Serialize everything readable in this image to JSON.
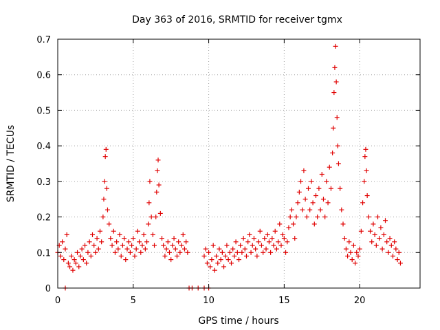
{
  "chart_data": {
    "type": "scatter",
    "title": "Day 363 of 2016, SRMTID for receiver tgmx",
    "xlabel": "GPS time / hours",
    "ylabel": "SRMTID / TECUs",
    "xlim": [
      0,
      24
    ],
    "ylim": [
      0,
      0.7
    ],
    "xticks": [
      0,
      5,
      10,
      15,
      20
    ],
    "yticks": [
      0,
      0.1,
      0.2,
      0.3,
      0.4,
      0.5,
      0.6,
      0.7
    ],
    "xtick_labels": [
      "0",
      "5",
      "10",
      "15",
      "20"
    ],
    "ytick_labels": [
      "0",
      "0.1",
      "0.2",
      "0.3",
      "0.4",
      "0.5",
      "0.6",
      "0.7"
    ],
    "grid": true,
    "marker": "plus",
    "color": "#e00000",
    "series": [
      {
        "name": "SRMTID",
        "points": [
          [
            0.0,
            0.1
          ],
          [
            0.1,
            0.12
          ],
          [
            0.2,
            0.09
          ],
          [
            0.3,
            0.13
          ],
          [
            0.4,
            0.08
          ],
          [
            0.5,
            0.11
          ],
          [
            0.6,
            0.15
          ],
          [
            0.7,
            0.07
          ],
          [
            0.8,
            0.06
          ],
          [
            0.9,
            0.09
          ],
          [
            1.0,
            0.05
          ],
          [
            1.1,
            0.08
          ],
          [
            1.2,
            0.07
          ],
          [
            1.3,
            0.1
          ],
          [
            1.4,
            0.06
          ],
          [
            1.5,
            0.09
          ],
          [
            1.6,
            0.11
          ],
          [
            1.7,
            0.08
          ],
          [
            1.8,
            0.12
          ],
          [
            1.9,
            0.07
          ],
          [
            2.0,
            0.1
          ],
          [
            2.1,
            0.13
          ],
          [
            2.2,
            0.09
          ],
          [
            2.3,
            0.15
          ],
          [
            2.4,
            0.12
          ],
          [
            2.5,
            0.1
          ],
          [
            2.6,
            0.14
          ],
          [
            2.7,
            0.11
          ],
          [
            2.8,
            0.16
          ],
          [
            2.9,
            0.13
          ],
          [
            3.0,
            0.2
          ],
          [
            3.05,
            0.25
          ],
          [
            3.1,
            0.3
          ],
          [
            3.15,
            0.37
          ],
          [
            3.2,
            0.39
          ],
          [
            3.25,
            0.28
          ],
          [
            3.3,
            0.22
          ],
          [
            3.4,
            0.18
          ],
          [
            3.5,
            0.14
          ],
          [
            3.6,
            0.12
          ],
          [
            3.7,
            0.16
          ],
          [
            3.8,
            0.1
          ],
          [
            3.9,
            0.13
          ],
          [
            4.0,
            0.11
          ],
          [
            4.1,
            0.15
          ],
          [
            4.2,
            0.09
          ],
          [
            4.3,
            0.12
          ],
          [
            4.4,
            0.14
          ],
          [
            4.5,
            0.08
          ],
          [
            4.6,
            0.11
          ],
          [
            4.7,
            0.13
          ],
          [
            4.8,
            0.1
          ],
          [
            4.9,
            0.12
          ],
          [
            5.0,
            0.14
          ],
          [
            5.1,
            0.09
          ],
          [
            5.2,
            0.11
          ],
          [
            5.3,
            0.16
          ],
          [
            5.4,
            0.13
          ],
          [
            5.5,
            0.1
          ],
          [
            5.6,
            0.12
          ],
          [
            5.7,
            0.15
          ],
          [
            5.8,
            0.11
          ],
          [
            5.9,
            0.13
          ],
          [
            6.0,
            0.18
          ],
          [
            6.05,
            0.24
          ],
          [
            6.1,
            0.3
          ],
          [
            6.2,
            0.2
          ],
          [
            6.3,
            0.15
          ],
          [
            6.4,
            0.12
          ],
          [
            6.5,
            0.2
          ],
          [
            6.55,
            0.27
          ],
          [
            6.6,
            0.33
          ],
          [
            6.65,
            0.36
          ],
          [
            6.7,
            0.29
          ],
          [
            6.8,
            0.21
          ],
          [
            6.9,
            0.14
          ],
          [
            7.0,
            0.12
          ],
          [
            7.1,
            0.09
          ],
          [
            7.2,
            0.11
          ],
          [
            7.3,
            0.13
          ],
          [
            7.4,
            0.1
          ],
          [
            7.5,
            0.08
          ],
          [
            7.6,
            0.12
          ],
          [
            7.7,
            0.14
          ],
          [
            7.8,
            0.11
          ],
          [
            7.9,
            0.09
          ],
          [
            8.0,
            0.13
          ],
          [
            8.1,
            0.1
          ],
          [
            8.2,
            0.12
          ],
          [
            8.3,
            0.15
          ],
          [
            8.4,
            0.11
          ],
          [
            8.5,
            0.13
          ],
          [
            8.6,
            0.1
          ],
          [
            0.5,
            0.0
          ],
          [
            8.7,
            0.0
          ],
          [
            8.9,
            0.0
          ],
          [
            9.3,
            0.0
          ],
          [
            9.7,
            0.0
          ],
          [
            10.0,
            0.0
          ],
          [
            9.7,
            0.09
          ],
          [
            9.8,
            0.11
          ],
          [
            9.9,
            0.07
          ],
          [
            10.0,
            0.1
          ],
          [
            10.1,
            0.06
          ],
          [
            10.2,
            0.08
          ],
          [
            10.3,
            0.12
          ],
          [
            10.4,
            0.05
          ],
          [
            10.5,
            0.09
          ],
          [
            10.6,
            0.07
          ],
          [
            10.7,
            0.11
          ],
          [
            10.8,
            0.08
          ],
          [
            10.9,
            0.1
          ],
          [
            11.0,
            0.06
          ],
          [
            11.1,
            0.09
          ],
          [
            11.2,
            0.12
          ],
          [
            11.3,
            0.08
          ],
          [
            11.4,
            0.1
          ],
          [
            11.5,
            0.07
          ],
          [
            11.6,
            0.11
          ],
          [
            11.7,
            0.09
          ],
          [
            11.8,
            0.13
          ],
          [
            11.9,
            0.1
          ],
          [
            12.0,
            0.08
          ],
          [
            12.1,
            0.12
          ],
          [
            12.2,
            0.1
          ],
          [
            12.3,
            0.14
          ],
          [
            12.4,
            0.11
          ],
          [
            12.5,
            0.09
          ],
          [
            12.6,
            0.13
          ],
          [
            12.7,
            0.15
          ],
          [
            12.8,
            0.1
          ],
          [
            12.9,
            0.12
          ],
          [
            13.0,
            0.14
          ],
          [
            13.1,
            0.11
          ],
          [
            13.2,
            0.09
          ],
          [
            13.3,
            0.13
          ],
          [
            13.4,
            0.16
          ],
          [
            13.5,
            0.12
          ],
          [
            13.6,
            0.1
          ],
          [
            13.7,
            0.14
          ],
          [
            13.8,
            0.11
          ],
          [
            13.9,
            0.15
          ],
          [
            14.0,
            0.13
          ],
          [
            14.1,
            0.1
          ],
          [
            14.2,
            0.14
          ],
          [
            14.3,
            0.12
          ],
          [
            14.4,
            0.16
          ],
          [
            14.5,
            0.11
          ],
          [
            14.6,
            0.13
          ],
          [
            14.7,
            0.18
          ],
          [
            14.8,
            0.12
          ],
          [
            14.9,
            0.15
          ],
          [
            15.0,
            0.14
          ],
          [
            15.1,
            0.1
          ],
          [
            15.2,
            0.13
          ],
          [
            15.3,
            0.17
          ],
          [
            15.4,
            0.2
          ],
          [
            15.5,
            0.22
          ],
          [
            15.6,
            0.18
          ],
          [
            15.7,
            0.14
          ],
          [
            15.8,
            0.2
          ],
          [
            15.9,
            0.24
          ],
          [
            16.0,
            0.27
          ],
          [
            16.1,
            0.3
          ],
          [
            16.2,
            0.22
          ],
          [
            16.3,
            0.33
          ],
          [
            16.4,
            0.25
          ],
          [
            16.5,
            0.2
          ],
          [
            16.6,
            0.28
          ],
          [
            16.7,
            0.22
          ],
          [
            16.8,
            0.3
          ],
          [
            16.9,
            0.24
          ],
          [
            17.0,
            0.18
          ],
          [
            17.1,
            0.26
          ],
          [
            17.2,
            0.2
          ],
          [
            17.3,
            0.28
          ],
          [
            17.4,
            0.22
          ],
          [
            17.5,
            0.32
          ],
          [
            17.6,
            0.25
          ],
          [
            17.7,
            0.2
          ],
          [
            17.8,
            0.3
          ],
          [
            17.9,
            0.24
          ],
          [
            18.0,
            0.34
          ],
          [
            18.1,
            0.28
          ],
          [
            18.2,
            0.38
          ],
          [
            18.25,
            0.45
          ],
          [
            18.3,
            0.55
          ],
          [
            18.35,
            0.62
          ],
          [
            18.4,
            0.68
          ],
          [
            18.45,
            0.58
          ],
          [
            18.5,
            0.48
          ],
          [
            18.55,
            0.4
          ],
          [
            18.6,
            0.35
          ],
          [
            18.7,
            0.28
          ],
          [
            18.8,
            0.22
          ],
          [
            18.9,
            0.18
          ],
          [
            19.0,
            0.14
          ],
          [
            19.1,
            0.11
          ],
          [
            19.2,
            0.09
          ],
          [
            19.3,
            0.13
          ],
          [
            19.4,
            0.1
          ],
          [
            19.5,
            0.08
          ],
          [
            19.6,
            0.12
          ],
          [
            19.7,
            0.07
          ],
          [
            19.8,
            0.1
          ],
          [
            19.9,
            0.09
          ],
          [
            20.0,
            0.11
          ],
          [
            20.1,
            0.16
          ],
          [
            20.2,
            0.24
          ],
          [
            20.3,
            0.3
          ],
          [
            20.35,
            0.37
          ],
          [
            20.4,
            0.39
          ],
          [
            20.45,
            0.33
          ],
          [
            20.5,
            0.26
          ],
          [
            20.6,
            0.2
          ],
          [
            20.7,
            0.16
          ],
          [
            20.8,
            0.13
          ],
          [
            20.9,
            0.18
          ],
          [
            21.0,
            0.15
          ],
          [
            21.1,
            0.12
          ],
          [
            21.2,
            0.2
          ],
          [
            21.3,
            0.14
          ],
          [
            21.4,
            0.17
          ],
          [
            21.5,
            0.11
          ],
          [
            21.6,
            0.15
          ],
          [
            21.7,
            0.19
          ],
          [
            21.8,
            0.13
          ],
          [
            21.9,
            0.1
          ],
          [
            22.0,
            0.14
          ],
          [
            22.1,
            0.12
          ],
          [
            22.2,
            0.09
          ],
          [
            22.3,
            0.13
          ],
          [
            22.4,
            0.11
          ],
          [
            22.5,
            0.08
          ],
          [
            22.6,
            0.1
          ],
          [
            22.7,
            0.07
          ]
        ]
      }
    ]
  }
}
